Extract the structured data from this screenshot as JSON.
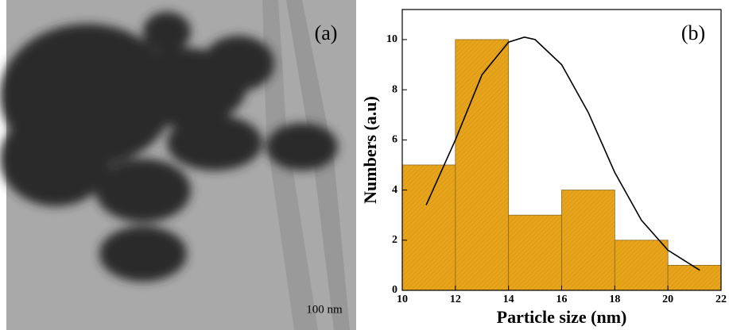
{
  "image_panel": {
    "label": "(a)",
    "scale_bar": "100 nm"
  },
  "chart_data": {
    "type": "histogram",
    "panel_label": "(b)",
    "xlabel": "Particle size (nm)",
    "ylabel": "Numbers (a.u)",
    "bins": [
      10,
      12,
      14,
      16,
      18,
      20,
      22
    ],
    "values": [
      5,
      10,
      3,
      4,
      2,
      1
    ],
    "color": "#e8a51c",
    "fit": {
      "x": [
        10.9,
        12,
        13,
        14,
        14.6,
        15,
        16,
        17,
        18,
        19,
        20,
        21.2
      ],
      "values": [
        3.4,
        6.0,
        8.6,
        9.9,
        10.1,
        10.0,
        9.0,
        7.1,
        4.7,
        2.8,
        1.6,
        0.8
      ],
      "color": "#000000"
    },
    "xlim": [
      10,
      22
    ],
    "xticks": [
      10,
      12,
      14,
      16,
      18,
      20,
      22
    ],
    "ylim": [
      0,
      11.2
    ],
    "yticks": [
      0,
      2,
      4,
      6,
      8,
      10
    ]
  }
}
